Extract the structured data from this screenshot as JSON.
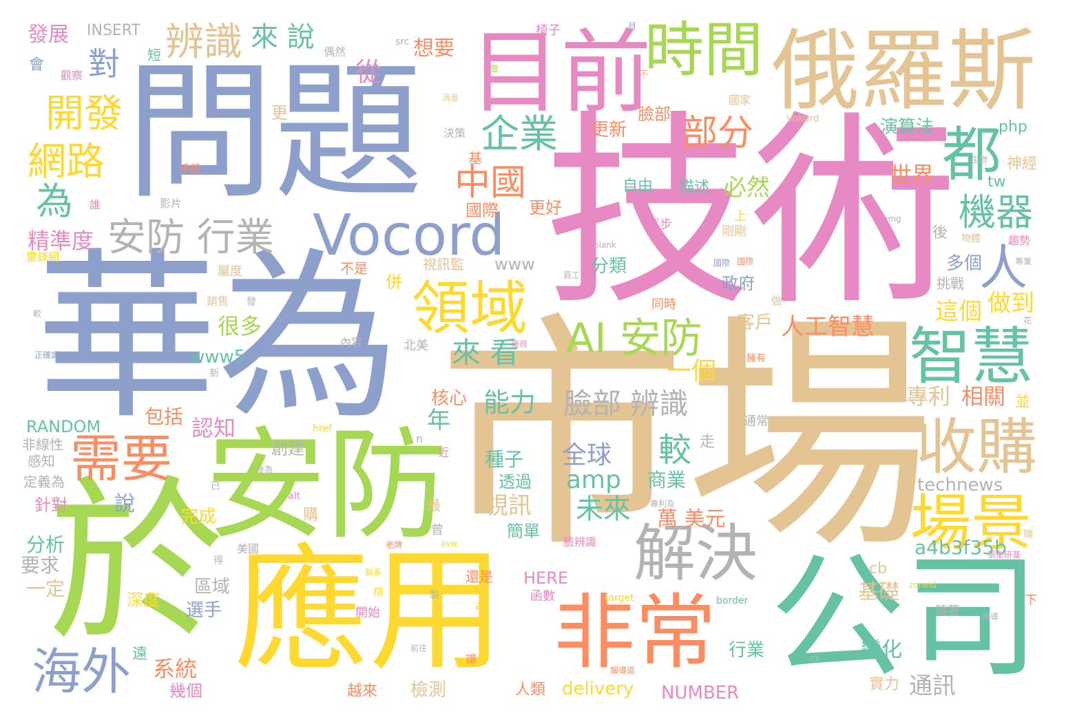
{
  "palette": {
    "blue": "#8DA0CB",
    "pink": "#E78AC3",
    "green": "#A6D854",
    "yellow": "#FFD92F",
    "tan": "#E5C494",
    "teal": "#66C2A5",
    "orange": "#FC8D62",
    "gray": "#B3B3B3"
  },
  "words": [
    {
      "text": "市場",
      "color": "tan"
    },
    {
      "text": "華為",
      "color": "blue"
    },
    {
      "text": "技術",
      "color": "pink"
    },
    {
      "text": "問題",
      "color": "blue"
    },
    {
      "text": "應用",
      "color": "yellow"
    },
    {
      "text": "於",
      "color": "green"
    },
    {
      "text": "安防",
      "color": "green"
    },
    {
      "text": "公司",
      "color": "teal"
    },
    {
      "text": "俄羅斯",
      "color": "tan"
    },
    {
      "text": "目前",
      "color": "pink"
    },
    {
      "text": "非常",
      "color": "orange"
    },
    {
      "text": "Vocord",
      "color": "blue"
    },
    {
      "text": "時間",
      "color": "green"
    },
    {
      "text": "解決",
      "color": "gray"
    },
    {
      "text": "收購",
      "color": "tan"
    },
    {
      "text": "智慧",
      "color": "teal"
    },
    {
      "text": "場景",
      "color": "yellow"
    },
    {
      "text": "領域",
      "color": "yellow"
    },
    {
      "text": "需要",
      "color": "orange"
    },
    {
      "text": "海外",
      "color": "blue"
    },
    {
      "text": "AI 安防",
      "color": "green"
    },
    {
      "text": "安防 行業",
      "color": "gray"
    },
    {
      "text": "都",
      "color": "teal"
    },
    {
      "text": "人",
      "color": "blue"
    },
    {
      "text": "辨識",
      "color": "tan"
    },
    {
      "text": "企業",
      "color": "teal"
    },
    {
      "text": "部分",
      "color": "orange"
    },
    {
      "text": "中國",
      "color": "orange"
    },
    {
      "text": "機器",
      "color": "teal"
    },
    {
      "text": "網路",
      "color": "yellow"
    },
    {
      "text": "開發",
      "color": "yellow"
    },
    {
      "text": "臉部 辨識",
      "color": "gray"
    },
    {
      "text": "來 看",
      "color": "teal"
    },
    {
      "text": "來 說",
      "color": "teal"
    },
    {
      "text": "從",
      "color": "pink"
    },
    {
      "text": "對",
      "color": "blue"
    },
    {
      "text": "為",
      "color": "teal"
    },
    {
      "text": "較",
      "color": "teal"
    },
    {
      "text": "未來",
      "color": "teal"
    },
    {
      "text": "能力",
      "color": "teal"
    },
    {
      "text": "人工智慧",
      "color": "orange"
    },
    {
      "text": "這個",
      "color": "yellow"
    },
    {
      "text": "做到",
      "color": "yellow"
    },
    {
      "text": "必然",
      "color": "green"
    },
    {
      "text": "世界",
      "color": "orange"
    },
    {
      "text": "全球",
      "color": "blue"
    },
    {
      "text": "amp",
      "color": "teal"
    },
    {
      "text": "視訊",
      "color": "tan"
    },
    {
      "text": "精準度",
      "color": "pink"
    },
    {
      "text": "發展",
      "color": "pink"
    },
    {
      "text": "INSERT",
      "color": "gray"
    },
    {
      "text": "想要",
      "color": "orange"
    },
    {
      "text": "演算法",
      "color": "teal"
    },
    {
      "text": "technews",
      "color": "gray"
    },
    {
      "text": "a4b3f35b",
      "color": "teal"
    },
    {
      "text": "RANDOM",
      "color": "teal"
    },
    {
      "text": "NUMBER",
      "color": "pink"
    },
    {
      "text": "delivery",
      "color": "yellow"
    },
    {
      "text": "www5",
      "color": "teal"
    },
    {
      "text": "www",
      "color": "gray"
    },
    {
      "text": "HERE",
      "color": "pink"
    },
    {
      "text": "年",
      "color": "teal"
    },
    {
      "text": "認知",
      "color": "pink"
    },
    {
      "text": "系統",
      "color": "orange"
    },
    {
      "text": "很多",
      "color": "green"
    },
    {
      "text": "包括",
      "color": "orange"
    },
    {
      "text": "萬 美元",
      "color": "orange"
    },
    {
      "text": "專利",
      "color": "tan"
    },
    {
      "text": "相關",
      "color": "orange"
    },
    {
      "text": "商業",
      "color": "teal"
    },
    {
      "text": "通訊",
      "color": "gray"
    },
    {
      "text": "變化",
      "color": "teal"
    },
    {
      "text": "基礎",
      "color": "tan"
    },
    {
      "text": "一個",
      "color": "yellow"
    },
    {
      "text": "分析",
      "color": "teal"
    },
    {
      "text": "要求",
      "color": "gray"
    },
    {
      "text": "一定",
      "color": "tan"
    },
    {
      "text": "說",
      "color": "blue"
    },
    {
      "text": "客戶",
      "color": "tan"
    },
    {
      "text": "政府",
      "color": "blue"
    },
    {
      "text": "多個",
      "color": "blue"
    },
    {
      "text": "分類",
      "color": "teal"
    },
    {
      "text": "臉部",
      "color": "orange"
    },
    {
      "text": "更新",
      "color": "orange"
    },
    {
      "text": "國際",
      "color": "orange"
    },
    {
      "text": "更好",
      "color": "orange"
    },
    {
      "text": "自由",
      "color": "teal"
    },
    {
      "text": "描述",
      "color": "teal"
    },
    {
      "text": "核心",
      "color": "orange"
    },
    {
      "text": "種子",
      "color": "teal"
    },
    {
      "text": "透過",
      "color": "teal"
    },
    {
      "text": "簡單",
      "color": "teal"
    },
    {
      "text": "完成",
      "color": "yellow"
    },
    {
      "text": "檢測",
      "color": "tan"
    },
    {
      "text": "選手",
      "color": "blue"
    },
    {
      "text": "區域",
      "color": "gray"
    },
    {
      "text": "深度",
      "color": "yellow"
    },
    {
      "text": "幾個",
      "color": "pink"
    },
    {
      "text": "人類",
      "color": "orange"
    },
    {
      "text": "越來",
      "color": "orange"
    },
    {
      "text": "創建",
      "color": "gray"
    },
    {
      "text": "非線性",
      "color": "gray"
    },
    {
      "text": "感知",
      "color": "gray"
    },
    {
      "text": "定義為",
      "color": "gray"
    },
    {
      "text": "針對",
      "color": "pink"
    },
    {
      "text": "行業",
      "color": "teal"
    },
    {
      "text": "實力",
      "color": "tan"
    },
    {
      "text": "挑戰",
      "color": "gray"
    },
    {
      "text": "神經",
      "color": "tan"
    },
    {
      "text": "php",
      "color": "teal"
    },
    {
      "text": "tw",
      "color": "teal"
    },
    {
      "text": "cb",
      "color": "tan"
    },
    {
      "text": "椅子",
      "color": "pink"
    },
    {
      "text": "偶然",
      "color": "gray"
    },
    {
      "text": "src",
      "color": "gray"
    },
    {
      "text": "短",
      "color": "teal"
    },
    {
      "text": "會",
      "color": "blue"
    },
    {
      "text": "觀察",
      "color": "pink"
    },
    {
      "text": "更",
      "color": "tan"
    },
    {
      "text": "手段",
      "color": "orange"
    },
    {
      "text": "決策",
      "color": "gray"
    },
    {
      "text": "基",
      "color": "orange"
    },
    {
      "text": "影片",
      "color": "gray"
    },
    {
      "text": "誰",
      "color": "pink"
    },
    {
      "text": "雷鋒網",
      "color": "yellow"
    },
    {
      "text": "屬度",
      "color": "tan"
    },
    {
      "text": "銷售",
      "color": "tan"
    },
    {
      "text": "不是",
      "color": "orange"
    },
    {
      "text": "視訊監",
      "color": "tan"
    },
    {
      "text": "併",
      "color": "yellow"
    },
    {
      "text": "內容",
      "color": "gray"
    },
    {
      "text": "北美",
      "color": "gray"
    },
    {
      "text": "逐步",
      "color": "pink"
    },
    {
      "text": "同時",
      "color": "orange"
    },
    {
      "text": "剛剛",
      "color": "tan"
    },
    {
      "text": "上",
      "color": "yellow"
    },
    {
      "text": "後",
      "color": "gray"
    },
    {
      "text": "並",
      "color": "yellow"
    },
    {
      "text": "走",
      "color": "gray"
    },
    {
      "text": "購",
      "color": "tan"
    },
    {
      "text": "最",
      "color": "tan"
    },
    {
      "text": "曾",
      "color": "gray"
    },
    {
      "text": "美國",
      "color": "gray"
    },
    {
      "text": "函數",
      "color": "pink"
    },
    {
      "text": "臉辨識",
      "color": "pink"
    },
    {
      "text": "還是",
      "color": "orange"
    },
    {
      "text": "開始",
      "color": "pink"
    },
    {
      "text": "隨著",
      "color": "gray"
    },
    {
      "text": "通常",
      "color": "gray"
    },
    {
      "text": "國家",
      "color": "tan"
    },
    {
      "text": "Vokord",
      "color": "tan"
    },
    {
      "text": "生物",
      "color": "gray"
    },
    {
      "text": "物體",
      "color": "tan"
    },
    {
      "text": "趨勢",
      "color": "pink"
    },
    {
      "text": "專業",
      "color": "gray"
    },
    {
      "text": "img",
      "color": "gray"
    },
    {
      "text": "blank",
      "color": "gray"
    },
    {
      "text": "員工",
      "color": "gray"
    },
    {
      "text": "國際",
      "color": "orange"
    },
    {
      "text": "做",
      "color": "tan"
    },
    {
      "text": "擁有",
      "color": "orange"
    },
    {
      "text": "花",
      "color": "gray"
    },
    {
      "text": "專利及",
      "color": "gray"
    },
    {
      "text": "瑞",
      "color": "tan"
    },
    {
      "text": "張衡研基",
      "color": "pink"
    },
    {
      "text": "目",
      "color": "blue"
    },
    {
      "text": "不",
      "color": "tan"
    },
    {
      "text": "消息",
      "color": "tan"
    },
    {
      "text": "壹",
      "color": "green"
    },
    {
      "text": "href",
      "color": "yellow"
    },
    {
      "text": "alt",
      "color": "pink"
    },
    {
      "text": "n",
      "color": "gray"
    },
    {
      "text": "近",
      "color": "pink"
    },
    {
      "text": "身為",
      "color": "gray"
    },
    {
      "text": "avw",
      "color": "yellow"
    },
    {
      "text": "target",
      "color": "yellow"
    },
    {
      "text": "zoneid",
      "color": "yellow"
    },
    {
      "text": "border",
      "color": "teal"
    },
    {
      "text": "a",
      "color": "yellow"
    },
    {
      "text": "ck",
      "color": "gray"
    },
    {
      "text": "下",
      "color": "orange"
    },
    {
      "text": "報導",
      "color": "gray"
    },
    {
      "text": "報導道",
      "color": "orange"
    },
    {
      "text": "前往",
      "color": "gray"
    },
    {
      "text": "讓",
      "color": "orange"
    },
    {
      "text": "製",
      "color": "gray"
    },
    {
      "text": "翔",
      "color": "yellow"
    },
    {
      "text": "聯系",
      "color": "yellow"
    },
    {
      "text": "老牌",
      "color": "orange"
    },
    {
      "text": "遠",
      "color": "teal"
    },
    {
      "text": "得",
      "color": "gray"
    },
    {
      "text": "已",
      "color": "gray"
    },
    {
      "text": "正確識",
      "color": "blue"
    },
    {
      "text": "新",
      "color": "gray"
    },
    {
      "text": "發",
      "color": "gray"
    },
    {
      "text": "較",
      "color": "gray"
    },
    {
      "text": "廠商",
      "color": "pink"
    },
    {
      "text": "國際",
      "color": "blue"
    }
  ]
}
